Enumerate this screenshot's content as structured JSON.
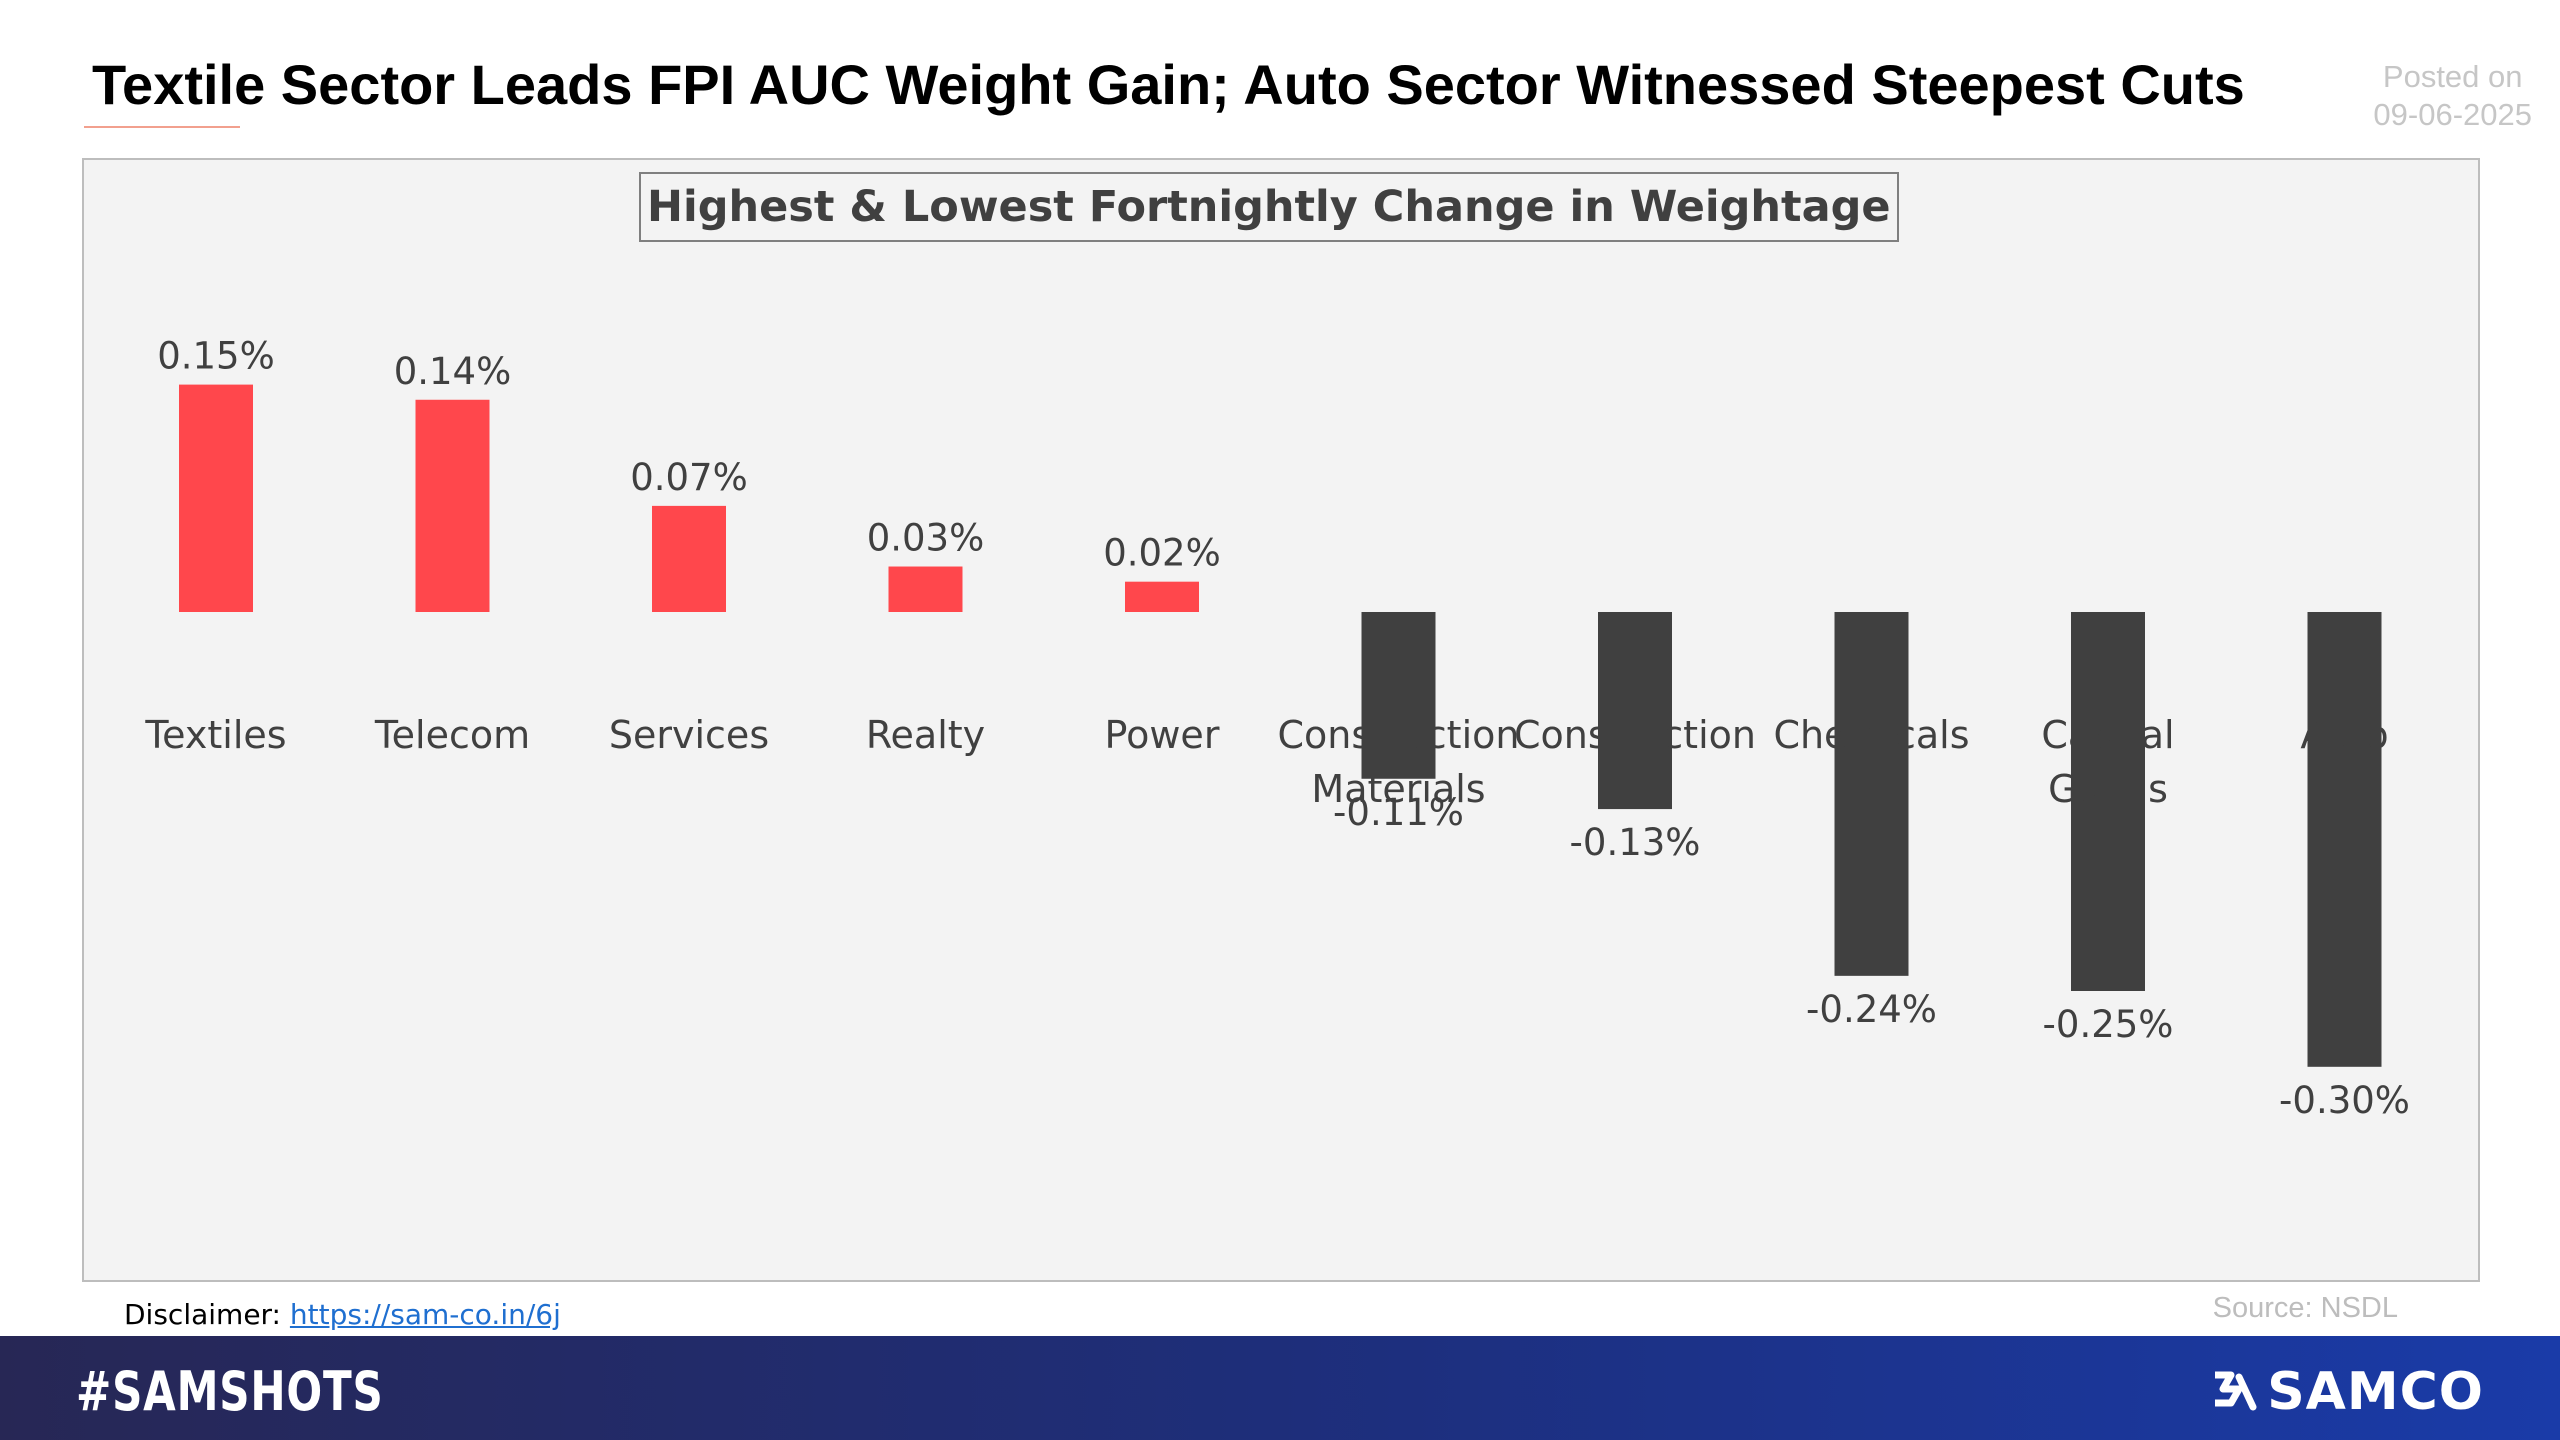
{
  "header": {
    "title": "Textile Sector Leads FPI AUC Weight Gain; Auto Sector Witnessed Steepest Cuts",
    "posted_label": "Posted on",
    "posted_date": "09-06-2025"
  },
  "footer": {
    "disclaimer_label": "Disclaimer:",
    "disclaimer_link": "https://sam-co.in/6j",
    "source": "Source: NSDL",
    "hashtag": "#SAMSHOTS",
    "brand": "SAMCO"
  },
  "colors": {
    "positive": "#ff474c",
    "negative": "#404040",
    "background": "#f3f3f3"
  },
  "chart_data": {
    "type": "bar",
    "title": "Highest & Lowest Fortnightly Change in Weightage",
    "categories": [
      "Textiles",
      "Telecom",
      "Services",
      "Realty",
      "Power",
      "Construction Materials",
      "Construction",
      "Chemicals",
      "Capital Goods",
      "Auto"
    ],
    "category_lines": [
      [
        "Textiles"
      ],
      [
        "Telecom"
      ],
      [
        "Services"
      ],
      [
        "Realty"
      ],
      [
        "Power"
      ],
      [
        "Construction",
        "Materials"
      ],
      [
        "Construction"
      ],
      [
        "Chemicals"
      ],
      [
        "Capital",
        "Goods"
      ],
      [
        "Auto"
      ]
    ],
    "values": [
      0.15,
      0.14,
      0.07,
      0.03,
      0.02,
      -0.11,
      -0.13,
      -0.24,
      -0.25,
      -0.3
    ],
    "value_labels": [
      "0.15%",
      "0.14%",
      "0.07%",
      "0.03%",
      "0.02%",
      "-0.11%",
      "-0.13%",
      "-0.24%",
      "-0.25%",
      "-0.30%"
    ],
    "ylim": [
      -0.3,
      0.15
    ],
    "unit": "%",
    "grid": false,
    "legend": "none"
  }
}
